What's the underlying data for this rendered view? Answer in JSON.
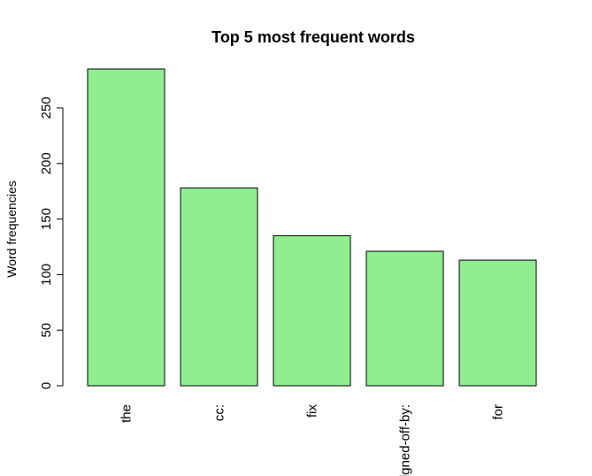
{
  "chart_data": {
    "type": "bar",
    "title": "Top 5 most frequent words",
    "xlabel": "",
    "ylabel": "Word frequencies",
    "categories": [
      "the",
      "cc:",
      "fix",
      "signed-off-by:",
      "for"
    ],
    "values": [
      285,
      178,
      135,
      121,
      113
    ],
    "yticks": [
      0,
      50,
      100,
      150,
      200,
      250
    ],
    "ylim": [
      0,
      285
    ],
    "bar_color": "#90EE90",
    "grid": false,
    "legend": "none"
  }
}
